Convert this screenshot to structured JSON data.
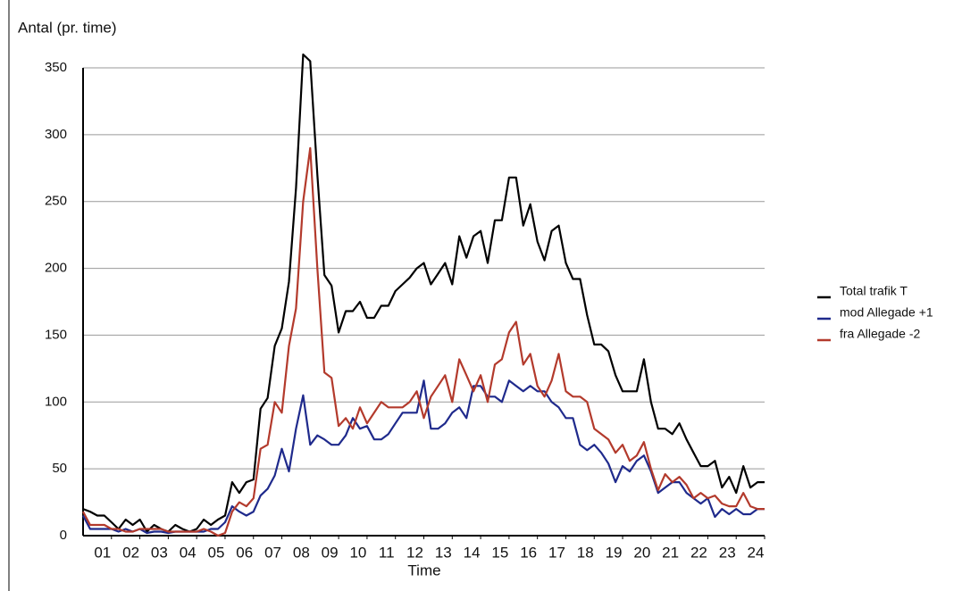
{
  "chart_data": {
    "type": "line",
    "ylabel": "Antal (pr. time)",
    "xlabel": "Time",
    "x": [
      0,
      0.25,
      0.5,
      0.75,
      1,
      1.25,
      1.5,
      1.75,
      2,
      2.25,
      2.5,
      2.75,
      3,
      3.25,
      3.5,
      3.75,
      4,
      4.25,
      4.5,
      4.75,
      5,
      5.25,
      5.5,
      5.75,
      6,
      6.25,
      6.5,
      6.75,
      7,
      7.25,
      7.5,
      7.75,
      8,
      8.25,
      8.5,
      8.75,
      9,
      9.25,
      9.5,
      9.75,
      10,
      10.25,
      10.5,
      10.75,
      11,
      11.25,
      11.5,
      11.75,
      12,
      12.25,
      12.5,
      12.75,
      13,
      13.25,
      13.5,
      13.75,
      14,
      14.25,
      14.5,
      14.75,
      15,
      15.25,
      15.5,
      15.75,
      16,
      16.25,
      16.5,
      16.75,
      17,
      17.25,
      17.5,
      17.75,
      18,
      18.25,
      18.5,
      18.75,
      19,
      19.25,
      19.5,
      19.75,
      20,
      20.25,
      20.5,
      20.75,
      21,
      21.25,
      21.5,
      21.75,
      22,
      22.25,
      22.5,
      22.75,
      23,
      23.25,
      23.5,
      23.75,
      24
    ],
    "series": [
      {
        "name": "Total trafik T",
        "color": "#000000",
        "values": [
          20,
          18,
          15,
          15,
          10,
          5,
          12,
          8,
          12,
          3,
          8,
          5,
          3,
          8,
          5,
          3,
          5,
          12,
          8,
          12,
          15,
          40,
          32,
          40,
          42,
          95,
          103,
          142,
          155,
          190,
          260,
          360,
          355,
          270,
          195,
          187,
          152,
          168,
          168,
          175,
          163,
          163,
          172,
          172,
          183,
          188,
          193,
          200,
          204,
          188,
          196,
          204,
          188,
          224,
          208,
          224,
          228,
          204,
          236,
          236,
          268,
          268,
          232,
          248,
          220,
          206,
          228,
          232,
          204,
          192,
          192,
          165,
          143,
          143,
          138,
          120,
          108,
          108,
          108,
          132,
          100,
          80,
          80,
          76,
          84,
          72,
          62,
          52,
          52,
          56,
          36,
          44,
          32,
          52,
          36,
          40,
          40
        ]
      },
      {
        "name": "mod Allegade  +1",
        "color": "#1f2a8c",
        "values": [
          15,
          5,
          5,
          5,
          5,
          3,
          5,
          3,
          5,
          2,
          3,
          3,
          2,
          3,
          3,
          3,
          3,
          3,
          5,
          5,
          10,
          22,
          18,
          15,
          18,
          30,
          35,
          45,
          65,
          48,
          80,
          105,
          68,
          75,
          72,
          68,
          68,
          75,
          88,
          80,
          82,
          72,
          72,
          76,
          84,
          92,
          92,
          92,
          116,
          80,
          80,
          84,
          92,
          96,
          88,
          112,
          112,
          104,
          104,
          100,
          116,
          112,
          108,
          112,
          108,
          108,
          100,
          96,
          88,
          88,
          68,
          64,
          68,
          62,
          54,
          40,
          52,
          48,
          56,
          60,
          48,
          32,
          36,
          40,
          40,
          32,
          28,
          24,
          28,
          14,
          20,
          16,
          20,
          16,
          16,
          20,
          20
        ]
      },
      {
        "name": "fra Allegade -2",
        "color": "#b33a2c",
        "values": [
          18,
          8,
          8,
          8,
          5,
          5,
          3,
          3,
          5,
          5,
          5,
          5,
          3,
          3,
          3,
          3,
          3,
          5,
          3,
          0,
          2,
          18,
          25,
          22,
          28,
          65,
          68,
          100,
          92,
          142,
          170,
          250,
          290,
          200,
          122,
          118,
          82,
          88,
          80,
          96,
          84,
          92,
          100,
          96,
          96,
          96,
          100,
          108,
          88,
          104,
          112,
          120,
          100,
          132,
          120,
          108,
          120,
          100,
          128,
          132,
          152,
          160,
          128,
          136,
          112,
          104,
          116,
          136,
          108,
          104,
          104,
          100,
          80,
          76,
          72,
          62,
          68,
          56,
          60,
          70,
          50,
          34,
          46,
          40,
          44,
          38,
          28,
          32,
          28,
          30,
          24,
          22,
          22,
          32,
          22,
          20,
          20
        ]
      }
    ],
    "xlim": [
      0,
      24
    ],
    "xticks": [
      {
        "value": 1,
        "label": "01"
      },
      {
        "value": 2,
        "label": "02"
      },
      {
        "value": 3,
        "label": "03"
      },
      {
        "value": 4,
        "label": "04"
      },
      {
        "value": 5,
        "label": "05"
      },
      {
        "value": 6,
        "label": "06"
      },
      {
        "value": 7,
        "label": "07"
      },
      {
        "value": 8,
        "label": "08"
      },
      {
        "value": 9,
        "label": "09"
      },
      10,
      11,
      12,
      13,
      14,
      15,
      16,
      17,
      18,
      19,
      20,
      21,
      22,
      23,
      24
    ],
    "ylim": [
      0,
      350
    ],
    "yticks": [
      0,
      50,
      100,
      150,
      200,
      250,
      300,
      350
    ],
    "grid": true,
    "legend": "right"
  }
}
